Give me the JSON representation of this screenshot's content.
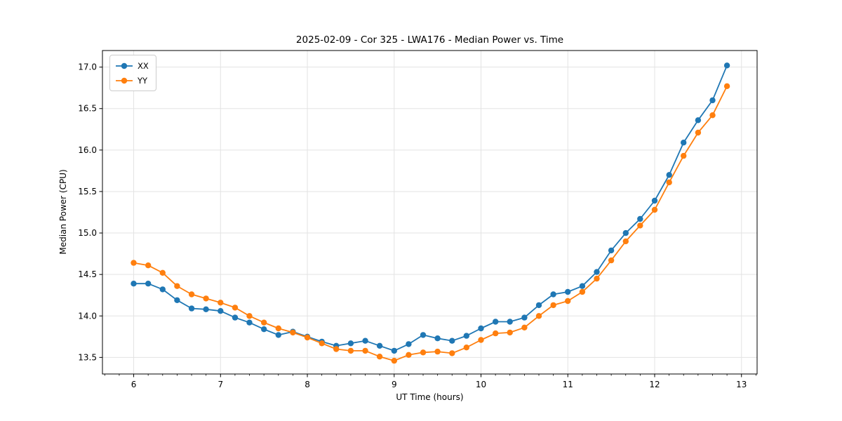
{
  "chart_data": {
    "type": "line",
    "title": "2025-02-09 - Cor 325 - LWA176 - Median Power vs. Time",
    "xlabel": "UT Time (hours)",
    "ylabel": "Median Power (CPU)",
    "xlim": [
      5.64,
      13.18
    ],
    "ylim": [
      13.3,
      17.2
    ],
    "x_ticks": [
      6,
      7,
      8,
      9,
      10,
      11,
      12,
      13
    ],
    "x_tick_labels": [
      "6",
      "7",
      "8",
      "9",
      "10",
      "11",
      "12",
      "13"
    ],
    "x_minor_divisions_per_hour": 6,
    "y_ticks": [
      13.5,
      14.0,
      14.5,
      15.0,
      15.5,
      16.0,
      16.5,
      17.0
    ],
    "y_tick_labels": [
      "13.5",
      "14.0",
      "14.5",
      "15.0",
      "15.5",
      "16.0",
      "16.5",
      "17.0"
    ],
    "grid": "major-only",
    "legend_position": "upper-left",
    "x": [
      6.0,
      6.167,
      6.333,
      6.5,
      6.667,
      6.833,
      7.0,
      7.167,
      7.333,
      7.5,
      7.667,
      7.833,
      8.0,
      8.167,
      8.333,
      8.5,
      8.667,
      8.833,
      9.0,
      9.167,
      9.333,
      9.5,
      9.667,
      9.833,
      10.0,
      10.167,
      10.333,
      10.5,
      10.667,
      10.833,
      11.0,
      11.167,
      11.333,
      11.5,
      11.667,
      11.833,
      12.0,
      12.167,
      12.333,
      12.5,
      12.667,
      12.833
    ],
    "series": [
      {
        "name": "XX",
        "color": "#1f77b4",
        "values": [
          14.39,
          14.39,
          14.32,
          14.19,
          14.09,
          14.08,
          14.06,
          13.98,
          13.92,
          13.84,
          13.77,
          13.81,
          13.75,
          13.69,
          13.64,
          13.67,
          13.7,
          13.64,
          13.58,
          13.66,
          13.77,
          13.73,
          13.7,
          13.76,
          13.85,
          13.93,
          13.93,
          13.98,
          14.13,
          14.26,
          14.29,
          14.36,
          14.53,
          14.79,
          15.0,
          15.17,
          15.39,
          15.7,
          16.09,
          16.36,
          16.6,
          17.02
        ]
      },
      {
        "name": "YY",
        "color": "#ff7f0e",
        "values": [
          14.64,
          14.61,
          14.52,
          14.36,
          14.26,
          14.21,
          14.16,
          14.1,
          14.0,
          13.92,
          13.85,
          13.8,
          13.74,
          13.67,
          13.6,
          13.58,
          13.58,
          13.51,
          13.46,
          13.53,
          13.56,
          13.57,
          13.55,
          13.62,
          13.71,
          13.79,
          13.8,
          13.86,
          14.0,
          14.13,
          14.18,
          14.29,
          14.45,
          14.67,
          14.9,
          15.09,
          15.28,
          15.61,
          15.93,
          16.21,
          16.42,
          16.77
        ]
      }
    ]
  }
}
